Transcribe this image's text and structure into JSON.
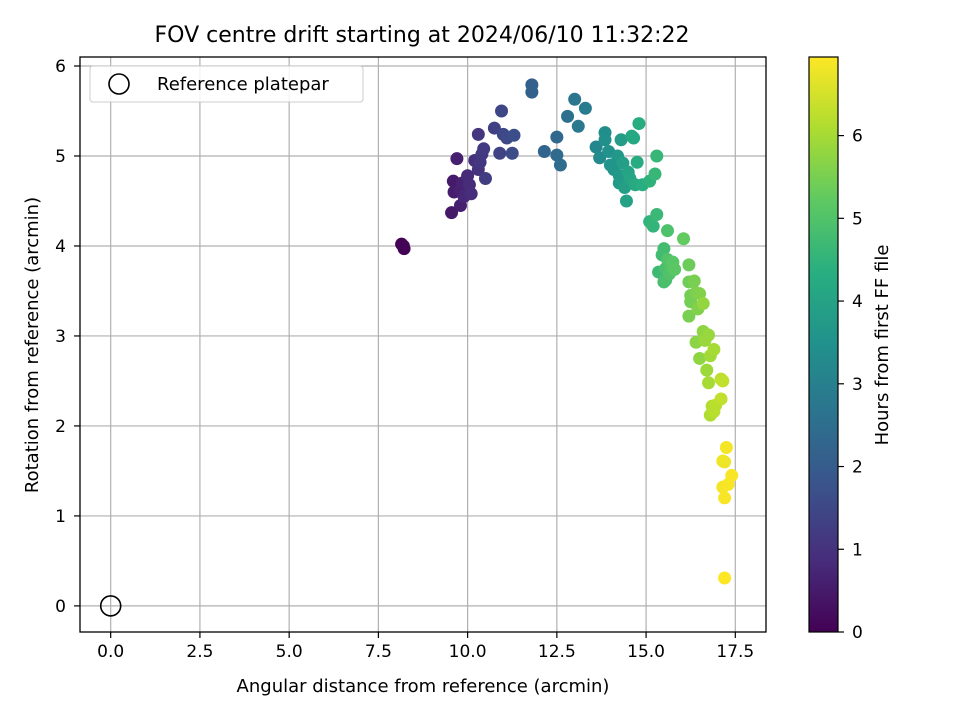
{
  "chart_data": {
    "type": "scatter",
    "title": "FOV centre drift starting at 2024/06/10 11:32:22",
    "xlabel": "Angular distance from reference (arcmin)",
    "ylabel": "Rotation from reference (arcmin)",
    "xlim": [
      -0.86,
      18.36
    ],
    "ylim": [
      -0.29,
      6.1
    ],
    "xticks": [
      0.0,
      2.5,
      5.0,
      7.5,
      10.0,
      12.5,
      15.0,
      17.5
    ],
    "xtick_labels": [
      "0.0",
      "2.5",
      "5.0",
      "7.5",
      "10.0",
      "12.5",
      "15.0",
      "17.5"
    ],
    "yticks": [
      0,
      1,
      2,
      3,
      4,
      5,
      6
    ],
    "ytick_labels": [
      "0",
      "1",
      "2",
      "3",
      "4",
      "5",
      "6"
    ],
    "grid": true,
    "legend": {
      "location": "upper-left",
      "entries": [
        "Reference platepar"
      ]
    },
    "reference_point": {
      "x": 0.0,
      "y": 0.0,
      "label": "Reference platepar"
    },
    "colorbar": {
      "label": "Hours from first FF file",
      "colormap": "viridis",
      "range": [
        0,
        6.95
      ],
      "ticks": [
        0,
        1,
        2,
        3,
        4,
        5,
        6
      ],
      "tick_labels": [
        "0",
        "1",
        "2",
        "3",
        "4",
        "5",
        "6"
      ]
    },
    "points": [
      {
        "x": 8.15,
        "y": 4.02,
        "c": 0.02
      },
      {
        "x": 8.2,
        "y": 4.0,
        "c": 0.03
      },
      {
        "x": 8.22,
        "y": 3.97,
        "c": 0.05
      },
      {
        "x": 9.55,
        "y": 4.37,
        "c": 0.45
      },
      {
        "x": 9.6,
        "y": 4.72,
        "c": 0.5
      },
      {
        "x": 9.62,
        "y": 4.6,
        "c": 0.55
      },
      {
        "x": 9.7,
        "y": 4.97,
        "c": 0.6
      },
      {
        "x": 9.8,
        "y": 4.45,
        "c": 0.6
      },
      {
        "x": 9.8,
        "y": 4.62,
        "c": 0.65
      },
      {
        "x": 9.85,
        "y": 4.7,
        "c": 0.7
      },
      {
        "x": 9.9,
        "y": 4.55,
        "c": 0.75
      },
      {
        "x": 10.0,
        "y": 4.78,
        "c": 0.8
      },
      {
        "x": 10.05,
        "y": 4.68,
        "c": 0.85
      },
      {
        "x": 10.1,
        "y": 4.58,
        "c": 0.9
      },
      {
        "x": 10.2,
        "y": 4.95,
        "c": 0.95
      },
      {
        "x": 10.3,
        "y": 4.85,
        "c": 1.0
      },
      {
        "x": 10.3,
        "y": 5.24,
        "c": 1.1
      },
      {
        "x": 10.35,
        "y": 4.93,
        "c": 1.1
      },
      {
        "x": 10.4,
        "y": 5.02,
        "c": 1.15
      },
      {
        "x": 10.45,
        "y": 5.08,
        "c": 1.2
      },
      {
        "x": 10.5,
        "y": 4.75,
        "c": 1.25
      },
      {
        "x": 10.75,
        "y": 5.31,
        "c": 1.35
      },
      {
        "x": 10.9,
        "y": 5.03,
        "c": 1.4
      },
      {
        "x": 10.95,
        "y": 5.5,
        "c": 1.45
      },
      {
        "x": 11.0,
        "y": 5.24,
        "c": 1.5
      },
      {
        "x": 11.1,
        "y": 5.2,
        "c": 1.55
      },
      {
        "x": 11.25,
        "y": 5.03,
        "c": 1.6
      },
      {
        "x": 11.3,
        "y": 5.23,
        "c": 1.65
      },
      {
        "x": 11.8,
        "y": 5.79,
        "c": 2.1
      },
      {
        "x": 11.8,
        "y": 5.71,
        "c": 2.15
      },
      {
        "x": 12.15,
        "y": 5.05,
        "c": 2.25
      },
      {
        "x": 12.5,
        "y": 5.21,
        "c": 2.35
      },
      {
        "x": 12.5,
        "y": 5.01,
        "c": 2.4
      },
      {
        "x": 12.6,
        "y": 4.9,
        "c": 2.45
      },
      {
        "x": 12.8,
        "y": 5.44,
        "c": 2.55
      },
      {
        "x": 13.0,
        "y": 5.63,
        "c": 2.7
      },
      {
        "x": 13.1,
        "y": 5.33,
        "c": 2.8
      },
      {
        "x": 13.3,
        "y": 5.53,
        "c": 2.9
      },
      {
        "x": 13.6,
        "y": 5.1,
        "c": 3.2
      },
      {
        "x": 13.7,
        "y": 4.98,
        "c": 3.3
      },
      {
        "x": 13.85,
        "y": 5.26,
        "c": 3.4
      },
      {
        "x": 13.85,
        "y": 5.18,
        "c": 3.45
      },
      {
        "x": 13.95,
        "y": 5.05,
        "c": 3.5
      },
      {
        "x": 14.0,
        "y": 4.9,
        "c": 3.55
      },
      {
        "x": 14.1,
        "y": 4.85,
        "c": 3.6
      },
      {
        "x": 14.2,
        "y": 5.0,
        "c": 3.65
      },
      {
        "x": 14.25,
        "y": 4.78,
        "c": 3.7
      },
      {
        "x": 14.25,
        "y": 4.7,
        "c": 3.75
      },
      {
        "x": 14.3,
        "y": 5.18,
        "c": 3.8
      },
      {
        "x": 14.35,
        "y": 4.92,
        "c": 3.85
      },
      {
        "x": 14.4,
        "y": 4.65,
        "c": 3.9
      },
      {
        "x": 14.45,
        "y": 4.5,
        "c": 3.95
      },
      {
        "x": 14.5,
        "y": 4.82,
        "c": 4.0
      },
      {
        "x": 14.55,
        "y": 4.75,
        "c": 4.05
      },
      {
        "x": 14.6,
        "y": 5.22,
        "c": 4.1
      },
      {
        "x": 14.65,
        "y": 5.2,
        "c": 4.15
      },
      {
        "x": 14.7,
        "y": 4.68,
        "c": 4.2
      },
      {
        "x": 14.75,
        "y": 4.93,
        "c": 4.25
      },
      {
        "x": 14.8,
        "y": 5.36,
        "c": 4.3
      },
      {
        "x": 14.9,
        "y": 4.68,
        "c": 4.35
      },
      {
        "x": 15.1,
        "y": 4.72,
        "c": 4.45
      },
      {
        "x": 15.1,
        "y": 4.27,
        "c": 4.5
      },
      {
        "x": 15.2,
        "y": 4.22,
        "c": 4.55
      },
      {
        "x": 15.25,
        "y": 4.8,
        "c": 4.6
      },
      {
        "x": 15.3,
        "y": 5.0,
        "c": 4.6
      },
      {
        "x": 15.3,
        "y": 4.35,
        "c": 4.65
      },
      {
        "x": 15.35,
        "y": 3.71,
        "c": 4.7
      },
      {
        "x": 15.45,
        "y": 3.9,
        "c": 4.75
      },
      {
        "x": 15.5,
        "y": 3.97,
        "c": 4.8
      },
      {
        "x": 15.5,
        "y": 3.6,
        "c": 4.85
      },
      {
        "x": 15.55,
        "y": 3.75,
        "c": 4.9
      },
      {
        "x": 15.55,
        "y": 3.62,
        "c": 4.9
      },
      {
        "x": 15.6,
        "y": 4.17,
        "c": 4.95
      },
      {
        "x": 15.6,
        "y": 3.85,
        "c": 5.0
      },
      {
        "x": 15.65,
        "y": 3.69,
        "c": 5.0
      },
      {
        "x": 15.7,
        "y": 3.78,
        "c": 5.05
      },
      {
        "x": 15.75,
        "y": 3.82,
        "c": 5.1
      },
      {
        "x": 15.8,
        "y": 3.74,
        "c": 5.15
      },
      {
        "x": 16.05,
        "y": 4.08,
        "c": 5.25
      },
      {
        "x": 16.2,
        "y": 3.79,
        "c": 5.35
      },
      {
        "x": 16.2,
        "y": 3.6,
        "c": 5.4
      },
      {
        "x": 16.25,
        "y": 3.45,
        "c": 5.45
      },
      {
        "x": 16.25,
        "y": 3.38,
        "c": 5.45
      },
      {
        "x": 16.2,
        "y": 3.22,
        "c": 5.5
      },
      {
        "x": 16.35,
        "y": 3.61,
        "c": 5.5
      },
      {
        "x": 16.4,
        "y": 3.48,
        "c": 5.55
      },
      {
        "x": 16.45,
        "y": 3.3,
        "c": 5.6
      },
      {
        "x": 16.5,
        "y": 3.47,
        "c": 5.6
      },
      {
        "x": 16.4,
        "y": 2.93,
        "c": 5.7
      },
      {
        "x": 16.5,
        "y": 2.75,
        "c": 5.75
      },
      {
        "x": 16.6,
        "y": 3.05,
        "c": 5.75
      },
      {
        "x": 16.6,
        "y": 3.36,
        "c": 5.8
      },
      {
        "x": 16.65,
        "y": 2.95,
        "c": 5.85
      },
      {
        "x": 16.75,
        "y": 3.01,
        "c": 5.85
      },
      {
        "x": 16.7,
        "y": 2.62,
        "c": 5.9
      },
      {
        "x": 16.8,
        "y": 2.78,
        "c": 5.95
      },
      {
        "x": 16.75,
        "y": 2.48,
        "c": 6.0
      },
      {
        "x": 16.9,
        "y": 2.85,
        "c": 6.0
      },
      {
        "x": 16.8,
        "y": 2.12,
        "c": 6.1
      },
      {
        "x": 16.85,
        "y": 2.22,
        "c": 6.15
      },
      {
        "x": 16.9,
        "y": 2.16,
        "c": 6.2
      },
      {
        "x": 16.95,
        "y": 2.23,
        "c": 6.2
      },
      {
        "x": 17.1,
        "y": 2.52,
        "c": 6.25
      },
      {
        "x": 17.1,
        "y": 2.3,
        "c": 6.3
      },
      {
        "x": 17.15,
        "y": 2.5,
        "c": 6.3
      },
      {
        "x": 17.15,
        "y": 1.61,
        "c": 6.8
      },
      {
        "x": 17.2,
        "y": 1.6,
        "c": 6.8
      },
      {
        "x": 17.25,
        "y": 1.76,
        "c": 6.85
      },
      {
        "x": 17.15,
        "y": 1.32,
        "c": 6.85
      },
      {
        "x": 17.2,
        "y": 1.2,
        "c": 6.9
      },
      {
        "x": 17.3,
        "y": 1.35,
        "c": 6.9
      },
      {
        "x": 17.4,
        "y": 1.45,
        "c": 6.9
      },
      {
        "x": 17.2,
        "y": 0.31,
        "c": 6.95
      }
    ]
  }
}
